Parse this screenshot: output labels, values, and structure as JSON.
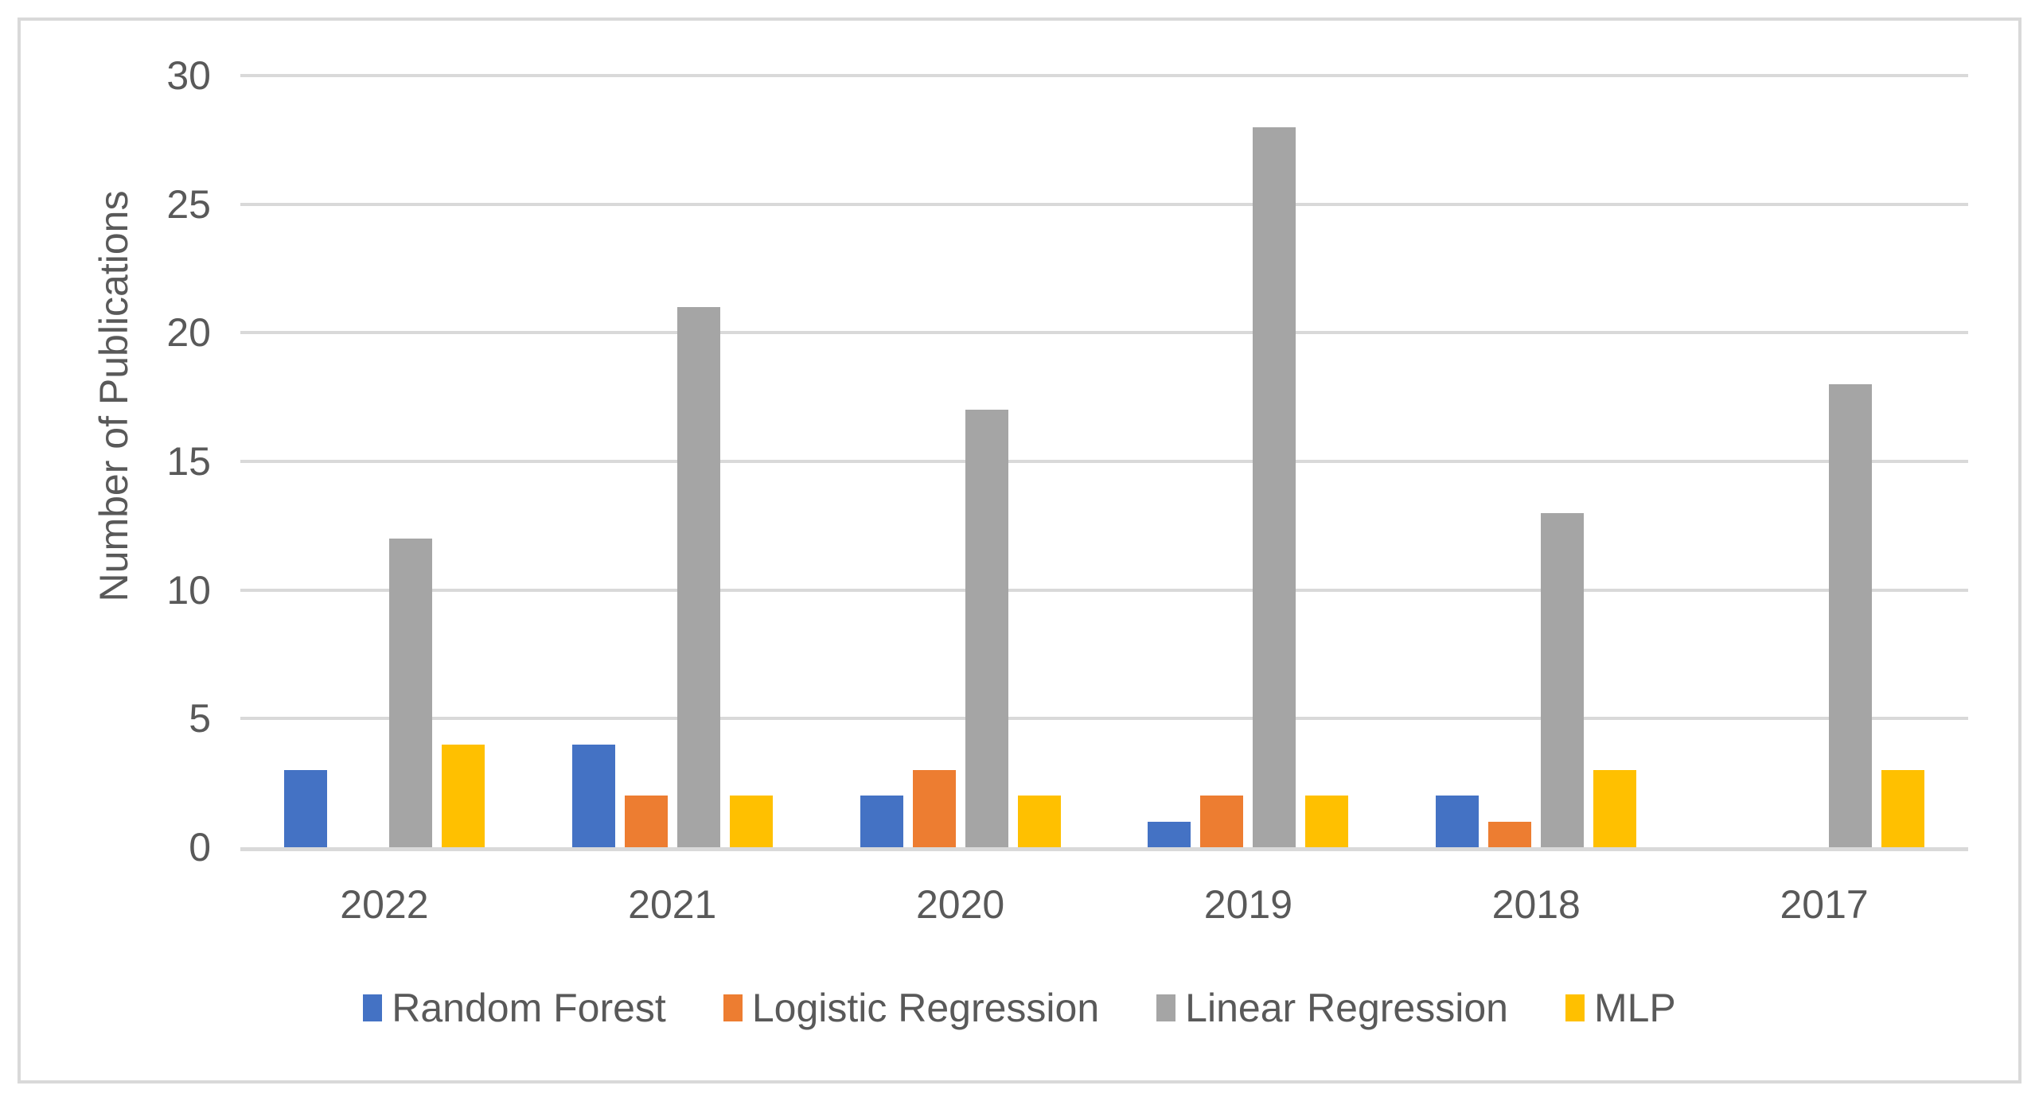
{
  "figure": {
    "background": "#FFFFFF",
    "border_color": "#D9D9D9",
    "text_color": "#595959",
    "gridline_color": "#D9D9D9",
    "axis_line_color": "#D9D9D9"
  },
  "chart_data": {
    "type": "bar",
    "title": "",
    "xlabel": "",
    "ylabel": "Number of Publications",
    "categories": [
      "2022",
      "2021",
      "2020",
      "2019",
      "2018",
      "2017"
    ],
    "series": [
      {
        "name": "Random Forest",
        "color": "#4472C4",
        "values": [
          3,
          4,
          2,
          1,
          2,
          0
        ]
      },
      {
        "name": "Logistic Regression",
        "color": "#ED7D31",
        "values": [
          0,
          2,
          3,
          2,
          1,
          0
        ]
      },
      {
        "name": "Linear Regression",
        "color": "#A5A5A5",
        "values": [
          12,
          21,
          17,
          28,
          13,
          18
        ]
      },
      {
        "name": "MLP",
        "color": "#FFC000",
        "values": [
          4,
          2,
          2,
          2,
          3,
          3
        ]
      }
    ],
    "ylim": [
      0,
      30
    ],
    "yticks": [
      0,
      5,
      10,
      15,
      20,
      25,
      30
    ],
    "grid": true,
    "legend_position": "bottom"
  }
}
